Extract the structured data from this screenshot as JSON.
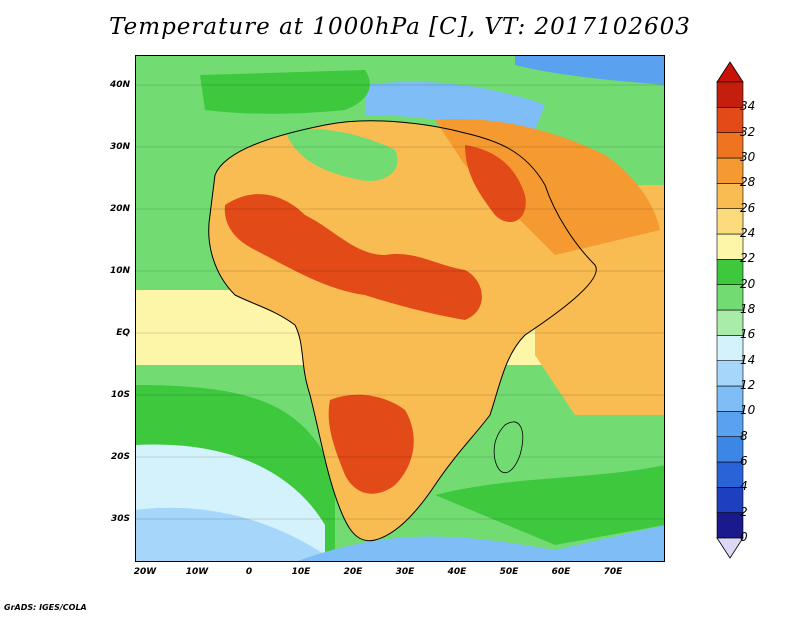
{
  "title": "Temperature at 1000hPa [C], VT: 2017102603",
  "credit": "GrADS: IGES/COLA",
  "axes": {
    "lat_labels": [
      "40N",
      "30N",
      "20N",
      "10N",
      "EQ",
      "10S",
      "20S",
      "30S"
    ],
    "lon_labels": [
      "20W",
      "10W",
      "0",
      "10E",
      "20E",
      "30E",
      "40E",
      "50E",
      "60E",
      "70E"
    ]
  },
  "colorbar": {
    "levels": [
      "0",
      "2",
      "4",
      "6",
      "8",
      "10",
      "12",
      "14",
      "16",
      "18",
      "20",
      "22",
      "24",
      "26",
      "28",
      "30",
      "32",
      "34"
    ],
    "colors": [
      "#1a1a8c",
      "#1e3fbf",
      "#2a62d8",
      "#3c86e6",
      "#5aa2ef",
      "#7ebdf5",
      "#a6d6fa",
      "#d4f2fb",
      "#a8eca8",
      "#72dc72",
      "#3ec83e",
      "#fdf5a8",
      "#fbdb7c",
      "#f9bc52",
      "#f59a30",
      "#ee7422",
      "#e24a17",
      "#c41e0e"
    ],
    "under_color": "#dcd8f6",
    "over_color": "#c81208"
  },
  "palette": {
    "ocean_green": "#3ec83e",
    "ocean_warm": "#fbdb7c",
    "hot": "#e24a17",
    "cool_blue": "#7ebdf5"
  }
}
